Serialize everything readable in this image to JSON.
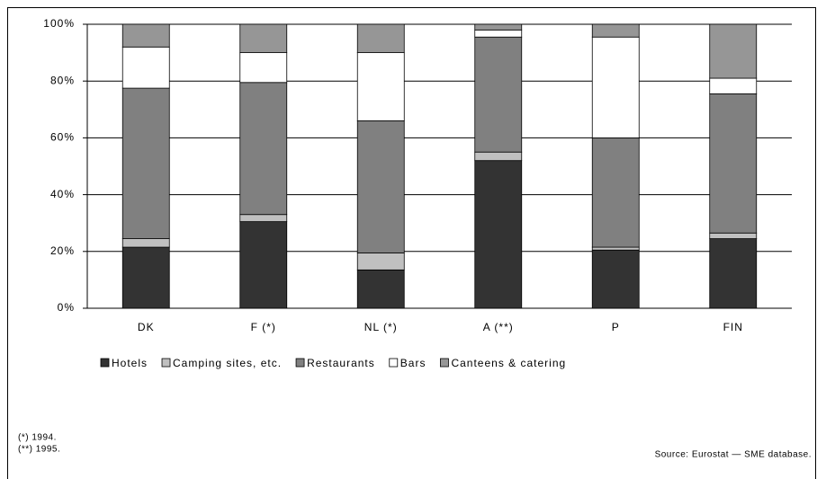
{
  "chart_data": {
    "type": "stacked_bar",
    "categories": [
      "DK",
      "F (*)",
      "NL (*)",
      "A (**)",
      "P",
      "FIN"
    ],
    "series": [
      {
        "name": "Hotels",
        "color": "#333333",
        "values": [
          21.5,
          30.5,
          13.5,
          52,
          20.5,
          24.5
        ]
      },
      {
        "name": "Camping sites, etc.",
        "color": "#c0c0c0",
        "values": [
          3,
          2.5,
          6,
          3,
          1,
          2
        ]
      },
      {
        "name": "Restaurants",
        "color": "#808080",
        "values": [
          53,
          46.5,
          46.5,
          40.5,
          38.5,
          49
        ]
      },
      {
        "name": "Bars",
        "color": "#ffffff",
        "values": [
          14.5,
          10.5,
          24,
          2.5,
          35.5,
          5.5
        ]
      },
      {
        "name": "Canteens & catering",
        "color": "#969696",
        "values": [
          8,
          10,
          10,
          2,
          4.5,
          19
        ]
      }
    ],
    "ylim": [
      0,
      100
    ],
    "yticks": [
      {
        "value": 0,
        "label": "0%"
      },
      {
        "value": 20,
        "label": "20%"
      },
      {
        "value": 40,
        "label": "40%"
      },
      {
        "value": 60,
        "label": "60%"
      },
      {
        "value": 80,
        "label": "80%"
      },
      {
        "value": 100,
        "label": "100%"
      }
    ],
    "grid": true,
    "legend": "bottom",
    "notes": [
      "(*) 1994.",
      "(**) 1995."
    ],
    "source": "Source: Eurostat — SME database."
  }
}
